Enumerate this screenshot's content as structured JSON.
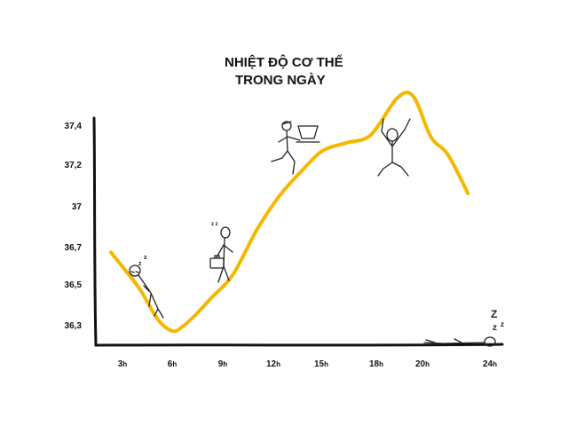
{
  "chart_data": {
    "type": "line",
    "title": "NHIỆT ĐỘ CƠ THỂ",
    "subtitle": "TRONG NGÀY",
    "xlabel": "",
    "ylabel": "",
    "x_ticks": [
      {
        "num": "3",
        "unit": "h",
        "hour": 3
      },
      {
        "num": "6",
        "unit": "h",
        "hour": 6
      },
      {
        "num": "9",
        "unit": "h",
        "hour": 9
      },
      {
        "num": "12",
        "unit": "h",
        "hour": 12
      },
      {
        "num": "15",
        "unit": "h",
        "hour": 15
      },
      {
        "num": "18",
        "unit": "h",
        "hour": 18
      },
      {
        "num": "20",
        "unit": "h",
        "hour": 20
      },
      {
        "num": "24",
        "unit": "h",
        "hour": 24
      }
    ],
    "y_ticks": [
      "37,4",
      "37,2",
      "37",
      "36,7",
      "36,5",
      "36,3"
    ],
    "y_tick_values": [
      37.4,
      37.2,
      37.0,
      36.7,
      36.5,
      36.3
    ],
    "points": [
      {
        "x": 2.3,
        "y": 36.67
      },
      {
        "x": 4.0,
        "y": 36.48
      },
      {
        "x": 5.1,
        "y": 36.33
      },
      {
        "x": 6.0,
        "y": 36.27
      },
      {
        "x": 6.6,
        "y": 36.29
      },
      {
        "x": 7.4,
        "y": 36.35
      },
      {
        "x": 8.3,
        "y": 36.43
      },
      {
        "x": 9.6,
        "y": 36.55
      },
      {
        "x": 11.0,
        "y": 36.82
      },
      {
        "x": 12.4,
        "y": 37.05
      },
      {
        "x": 13.8,
        "y": 37.17
      },
      {
        "x": 15.1,
        "y": 37.27
      },
      {
        "x": 16.4,
        "y": 37.31
      },
      {
        "x": 17.7,
        "y": 37.35
      },
      {
        "x": 18.9,
        "y": 37.41
      },
      {
        "x": 19.6,
        "y": 37.42
      },
      {
        "x": 20.5,
        "y": 37.34
      },
      {
        "x": 21.5,
        "y": 37.25
      },
      {
        "x": 22.7,
        "y": 37.06
      }
    ],
    "line_color": "#f5b800",
    "axis_color": "#111111",
    "grid": false,
    "legend": "none"
  }
}
